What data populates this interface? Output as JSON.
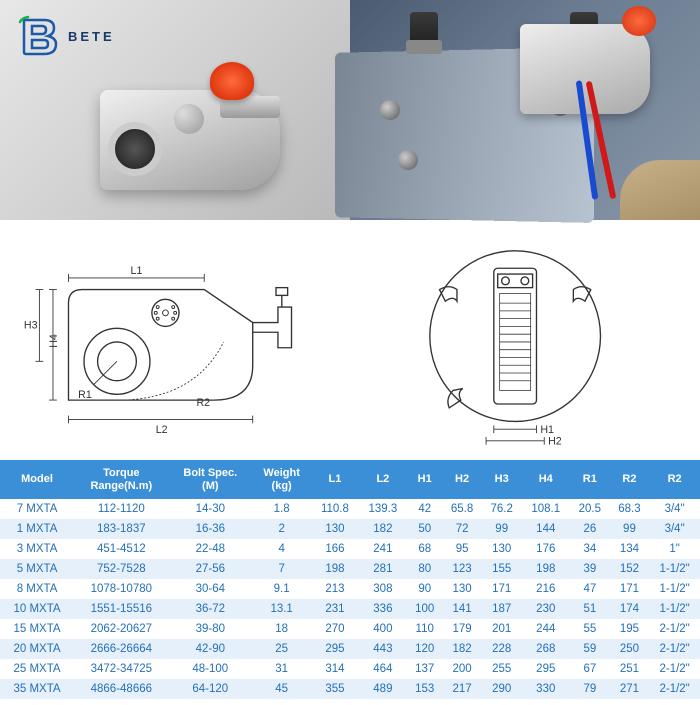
{
  "brand": {
    "name": "BETE",
    "logo_stroke": "#1a5aa8",
    "logo_accent": "#18b04a"
  },
  "colors": {
    "header_bg": "#3b8fd6",
    "header_fg": "#ffffff",
    "row_odd": "#ffffff",
    "row_even": "#e5f0fa",
    "cell_fg": "#2570b8",
    "cap": "#e03810"
  },
  "diagram_labels": {
    "L1": "L1",
    "L2": "L2",
    "R1": "R1",
    "R2": "R2",
    "H1": "H1",
    "H2": "H2",
    "H3": "H3",
    "H4": "H4"
  },
  "table": {
    "columns": [
      "Model",
      "Torque Range(N.m)",
      "Bolt Spec. (M)",
      "Weight (kg)",
      "L1",
      "L2",
      "H1",
      "H2",
      "H3",
      "H4",
      "R1",
      "R2",
      "R2"
    ],
    "rows": [
      [
        "7 MXTA",
        "112-1120",
        "14-30",
        "1.8",
        "110.8",
        "139.3",
        "42",
        "65.8",
        "76.2",
        "108.1",
        "20.5",
        "68.3",
        "3/4\""
      ],
      [
        "1 MXTA",
        "183-1837",
        "16-36",
        "2",
        "130",
        "182",
        "50",
        "72",
        "99",
        "144",
        "26",
        "99",
        "3/4\""
      ],
      [
        "3 MXTA",
        "451-4512",
        "22-48",
        "4",
        "166",
        "241",
        "68",
        "95",
        "130",
        "176",
        "34",
        "134",
        "1\""
      ],
      [
        "5 MXTA",
        "752-7528",
        "27-56",
        "7",
        "198",
        "281",
        "80",
        "123",
        "155",
        "198",
        "39",
        "152",
        "1-1/2\""
      ],
      [
        "8 MXTA",
        "1078-10780",
        "30-64",
        "9.1",
        "213",
        "308",
        "90",
        "130",
        "171",
        "216",
        "47",
        "171",
        "1-1/2\""
      ],
      [
        "10 MXTA",
        "1551-15516",
        "36-72",
        "13.1",
        "231",
        "336",
        "100",
        "141",
        "187",
        "230",
        "51",
        "174",
        "1-1/2\""
      ],
      [
        "15 MXTA",
        "2062-20627",
        "39-80",
        "18",
        "270",
        "400",
        "110",
        "179",
        "201",
        "244",
        "55",
        "195",
        "2-1/2\""
      ],
      [
        "20 MXTA",
        "2666-26664",
        "42-90",
        "25",
        "295",
        "443",
        "120",
        "182",
        "228",
        "268",
        "59",
        "250",
        "2-1/2\""
      ],
      [
        "25 MXTA",
        "3472-34725",
        "48-100",
        "31",
        "314",
        "464",
        "137",
        "200",
        "255",
        "295",
        "67",
        "251",
        "2-1/2\""
      ],
      [
        "35 MXTA",
        "4866-48666",
        "64-120",
        "45",
        "355",
        "489",
        "153",
        "217",
        "290",
        "330",
        "79",
        "271",
        "2-1/2\""
      ]
    ]
  }
}
